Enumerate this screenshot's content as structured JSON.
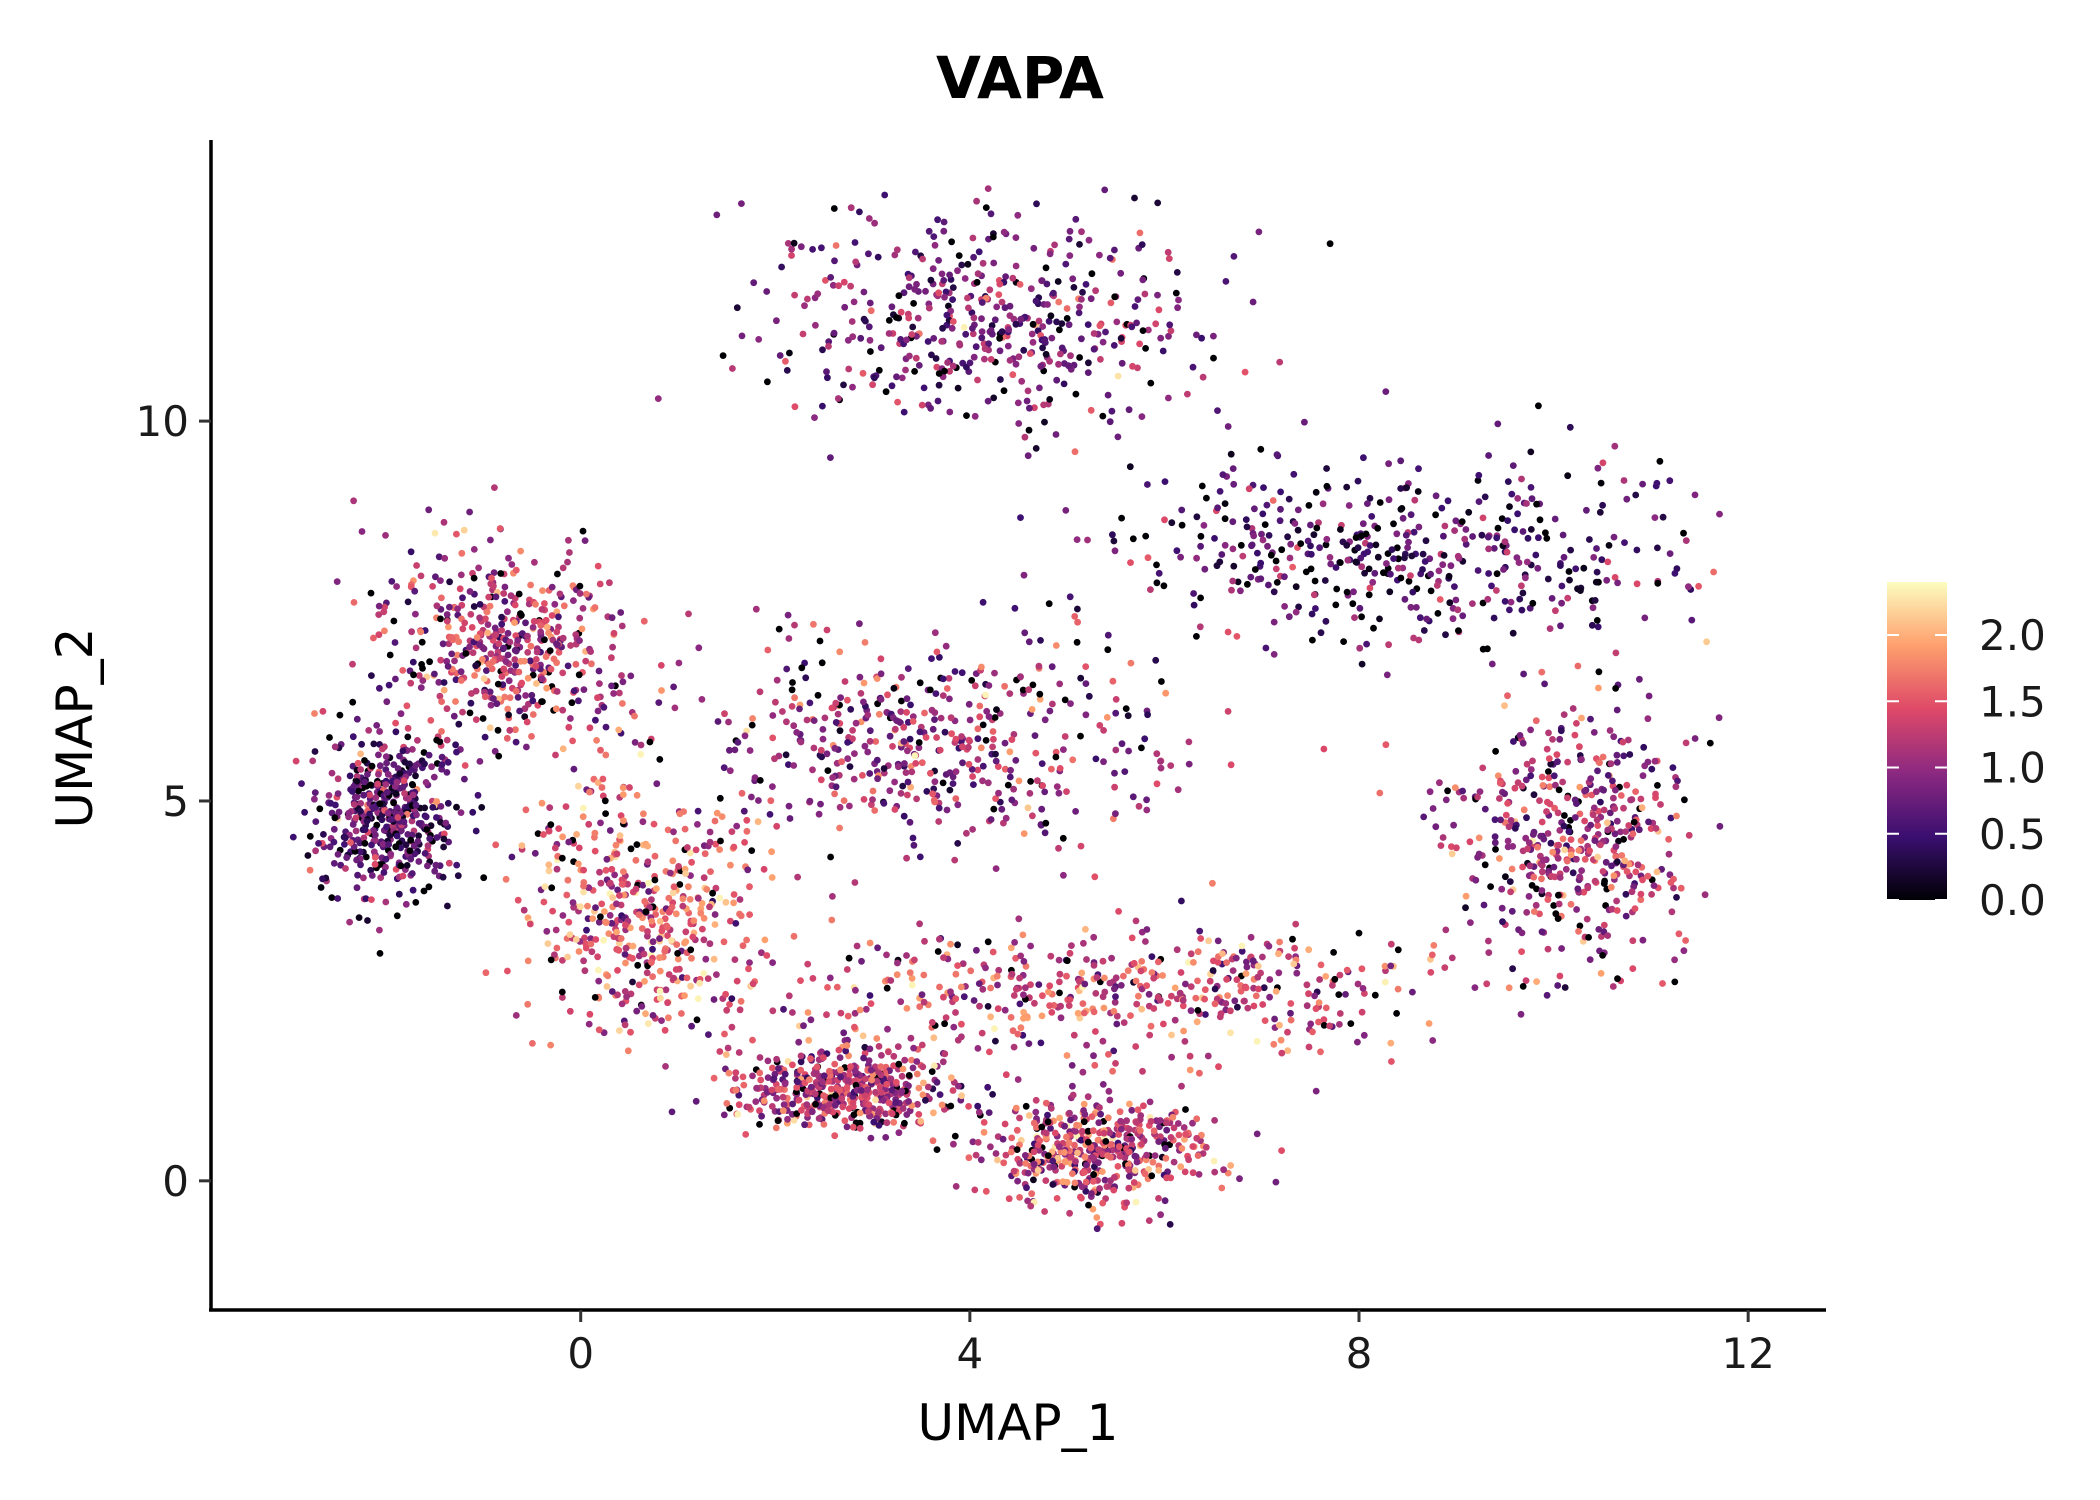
{
  "chart_data": {
    "type": "scatter",
    "title": "VAPA",
    "xlabel": "UMAP_1",
    "ylabel": "UMAP_2",
    "xlim": [
      -3.8,
      12.8
    ],
    "ylim": [
      -1.7,
      13.7
    ],
    "xticks": [
      0,
      4,
      8,
      12
    ],
    "yticks": [
      0,
      5,
      10
    ],
    "grid": false,
    "colorbar": {
      "label": "",
      "min": 0.0,
      "max": 2.4,
      "ticks": [
        0.0,
        0.5,
        1.0,
        1.5,
        2.0
      ],
      "tick_labels": [
        "0.0",
        "0.5",
        "1.0",
        "1.5",
        "2.0"
      ],
      "colormap": "magma",
      "colors": [
        "#000004",
        "#3b0f70",
        "#8c2981",
        "#de4968",
        "#fe9f6d",
        "#fcfdbf"
      ],
      "placement": "right"
    },
    "point_count_estimate": 5000,
    "clusters": [
      {
        "name": "top-lobe",
        "center": [
          4.2,
          11.3
        ],
        "spread": [
          1.6,
          1.0
        ],
        "mean_expression": 0.8
      },
      {
        "name": "upper-right-band",
        "center": [
          8.5,
          8.3
        ],
        "spread": [
          2.3,
          0.9
        ],
        "mean_expression": 0.6
      },
      {
        "name": "left-arc",
        "center": [
          -0.8,
          7.0
        ],
        "spread": [
          0.9,
          1.0
        ],
        "mean_expression": 1.2
      },
      {
        "name": "far-left",
        "center": [
          -2.0,
          4.8
        ],
        "spread": [
          0.5,
          0.8
        ],
        "mean_expression": 0.7
      },
      {
        "name": "center-mid",
        "center": [
          3.5,
          5.8
        ],
        "spread": [
          1.8,
          1.0
        ],
        "mean_expression": 1.0
      },
      {
        "name": "lower-left-arc",
        "center": [
          0.6,
          3.5
        ],
        "spread": [
          0.9,
          1.3
        ],
        "mean_expression": 1.5
      },
      {
        "name": "bottom-band",
        "center": [
          5.5,
          2.5
        ],
        "spread": [
          2.4,
          0.6
        ],
        "mean_expression": 1.3
      },
      {
        "name": "right-arm",
        "center": [
          10.2,
          4.5
        ],
        "spread": [
          0.9,
          1.2
        ],
        "mean_expression": 1.1
      },
      {
        "name": "bottom-tail",
        "center": [
          5.3,
          0.4
        ],
        "spread": [
          0.8,
          0.5
        ],
        "mean_expression": 1.3
      },
      {
        "name": "lower-middle",
        "center": [
          2.7,
          1.2
        ],
        "spread": [
          0.8,
          0.4
        ],
        "mean_expression": 1.2
      }
    ]
  }
}
